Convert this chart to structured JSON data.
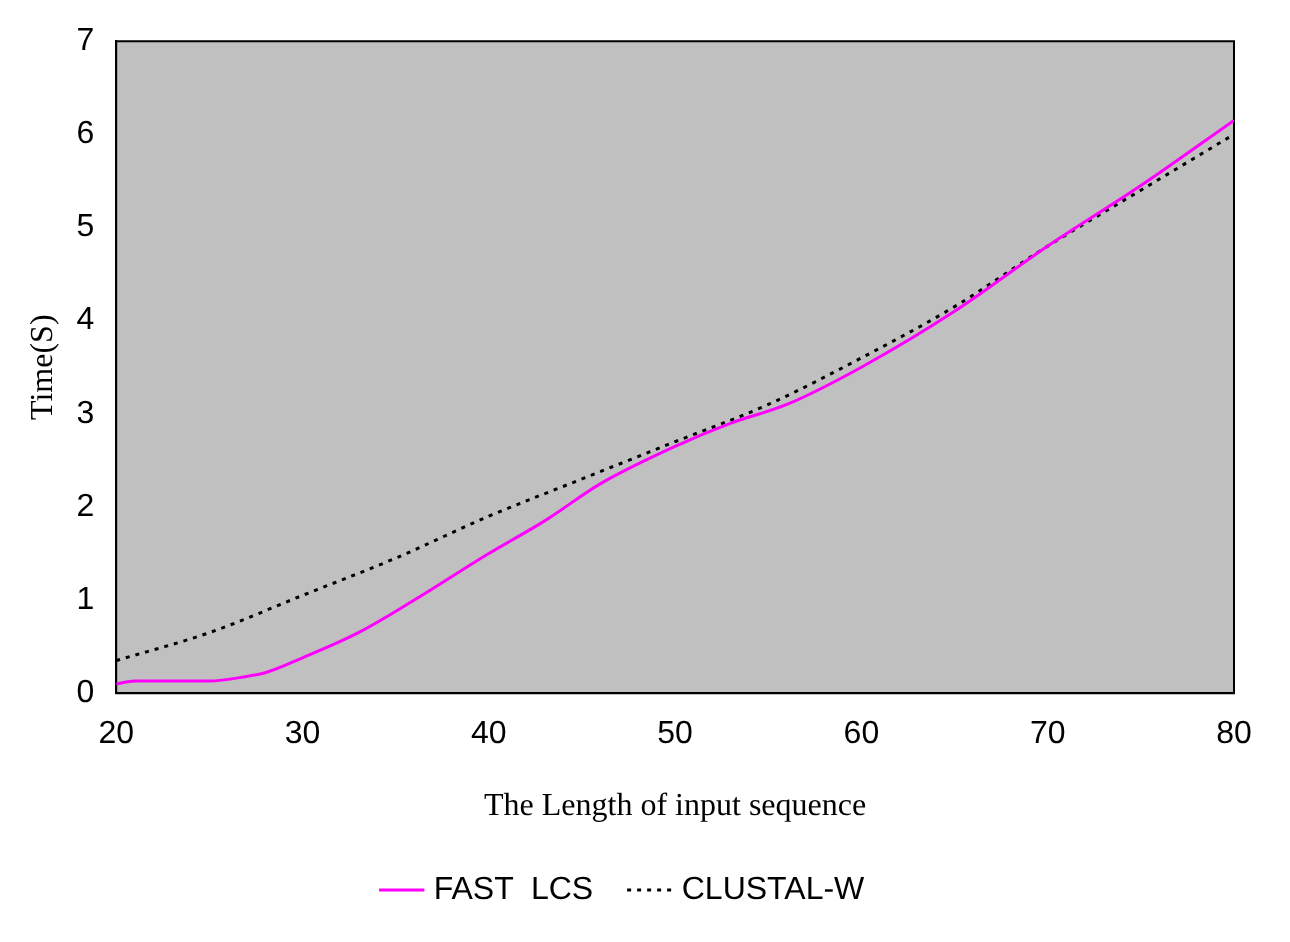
{
  "chart_data": {
    "type": "line",
    "xlabel": "The Length of input sequence",
    "ylabel": "Time(S)",
    "xlim": [
      20,
      80
    ],
    "xticks": [
      20,
      30,
      40,
      50,
      60,
      70,
      80
    ],
    "ylim": [
      0,
      7
    ],
    "yticks": [
      0,
      1,
      2,
      3,
      4,
      5,
      6,
      7
    ],
    "grid": false,
    "legend": "bottom",
    "marker": "none",
    "series": [
      {
        "name": "FAST  LCS",
        "color": "#ff00ff",
        "line_style": "solid",
        "x": [
          20,
          21,
          25,
          27,
          28,
          30,
          33,
          36,
          40,
          43,
          46,
          50,
          53,
          56,
          60,
          65,
          70,
          75,
          80
        ],
        "values": [
          0.1,
          0.13,
          0.13,
          0.18,
          0.22,
          0.38,
          0.65,
          1.0,
          1.5,
          1.85,
          2.25,
          2.65,
          2.9,
          3.1,
          3.5,
          4.1,
          4.8,
          5.45,
          6.15
        ]
      },
      {
        "name": "CLUSTAL-W",
        "color": "#000000",
        "line_style": "dotted",
        "x": [
          20,
          25,
          30,
          35,
          40,
          45,
          50,
          55,
          60,
          65,
          70,
          75,
          80
        ],
        "values": [
          0.35,
          0.65,
          1.05,
          1.45,
          1.9,
          2.3,
          2.7,
          3.1,
          3.6,
          4.15,
          4.8,
          5.4,
          6.0
        ]
      }
    ]
  }
}
